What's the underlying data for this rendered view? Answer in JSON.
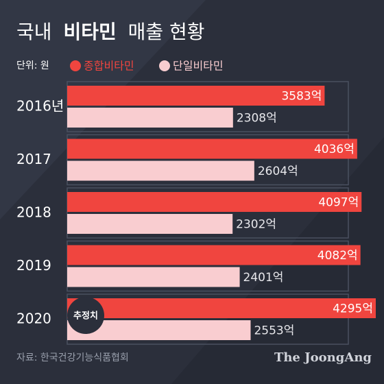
{
  "chart_data": {
    "type": "bar",
    "orientation": "horizontal",
    "title": [
      "국내",
      "비타민",
      "매출 현황"
    ],
    "unit_note": "단위: 원",
    "categories": [
      "2016년",
      "2017",
      "2018",
      "2019",
      "2020"
    ],
    "series": [
      {
        "name": "종합비타민",
        "color": "#f0453f",
        "values": [
          3583,
          4036,
          4097,
          4082,
          4295
        ],
        "value_labels": [
          "3583억",
          "4036억",
          "4097억",
          "4082억",
          "4295억"
        ]
      },
      {
        "name": "단일비타민",
        "color": "#f9cdd0",
        "values": [
          2308,
          2604,
          2302,
          2401,
          2553
        ],
        "value_labels": [
          "2308억",
          "2604억",
          "2302억",
          "2401억",
          "2553억"
        ]
      }
    ],
    "annotation": "추정치",
    "source": "자료: 한국건강기능식품협회",
    "brand": "The JoongAng"
  }
}
